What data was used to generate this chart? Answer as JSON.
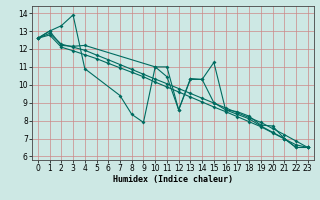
{
  "xlabel": "Humidex (Indice chaleur)",
  "bg_color": "#cde8e4",
  "grid_color": "#cc8888",
  "line_color": "#006b60",
  "xlim": [
    -0.5,
    23.5
  ],
  "ylim": [
    5.8,
    14.4
  ],
  "yticks": [
    6,
    7,
    8,
    9,
    10,
    11,
    12,
    13,
    14
  ],
  "xticks": [
    0,
    1,
    2,
    3,
    4,
    5,
    6,
    7,
    8,
    9,
    10,
    11,
    12,
    13,
    14,
    15,
    16,
    17,
    18,
    19,
    20,
    21,
    22,
    23
  ],
  "lines": [
    {
      "x": [
        0,
        1,
        2,
        3,
        4,
        7,
        8,
        9,
        10,
        11,
        12,
        13,
        14,
        15,
        16,
        17,
        18,
        19,
        20,
        21,
        22,
        23
      ],
      "y": [
        12.6,
        13.0,
        13.3,
        13.9,
        10.9,
        9.4,
        8.35,
        7.9,
        11.0,
        11.0,
        8.6,
        10.35,
        10.3,
        11.25,
        8.6,
        8.5,
        8.25,
        7.75,
        7.7,
        7.0,
        6.5,
        6.5
      ]
    },
    {
      "x": [
        0,
        1,
        2,
        3,
        4,
        10,
        11,
        12,
        13,
        14,
        15,
        16,
        17,
        18,
        19,
        20,
        21,
        22,
        23
      ],
      "y": [
        12.6,
        13.0,
        12.2,
        12.15,
        12.2,
        11.0,
        10.45,
        8.6,
        10.3,
        10.3,
        9.0,
        8.6,
        8.35,
        8.1,
        7.7,
        7.35,
        7.0,
        6.5,
        6.5
      ]
    },
    {
      "x": [
        0,
        1,
        2,
        3,
        4,
        5,
        6,
        7,
        8,
        9,
        10,
        11,
        12,
        13,
        14,
        15,
        16,
        17,
        18,
        19,
        20,
        21,
        22,
        23
      ],
      "y": [
        12.6,
        12.87,
        12.27,
        12.1,
        11.93,
        11.66,
        11.4,
        11.13,
        10.86,
        10.59,
        10.32,
        10.06,
        9.79,
        9.52,
        9.25,
        8.98,
        8.71,
        8.44,
        8.17,
        7.9,
        7.56,
        7.22,
        6.86,
        6.5
      ]
    },
    {
      "x": [
        0,
        1,
        2,
        3,
        4,
        5,
        6,
        7,
        8,
        9,
        10,
        11,
        12,
        13,
        14,
        15,
        16,
        17,
        18,
        19,
        20,
        21,
        22,
        23
      ],
      "y": [
        12.6,
        12.78,
        12.1,
        11.9,
        11.68,
        11.46,
        11.2,
        10.95,
        10.7,
        10.45,
        10.15,
        9.88,
        9.6,
        9.32,
        9.04,
        8.76,
        8.5,
        8.22,
        7.94,
        7.66,
        7.32,
        6.98,
        6.65,
        6.5
      ]
    }
  ]
}
